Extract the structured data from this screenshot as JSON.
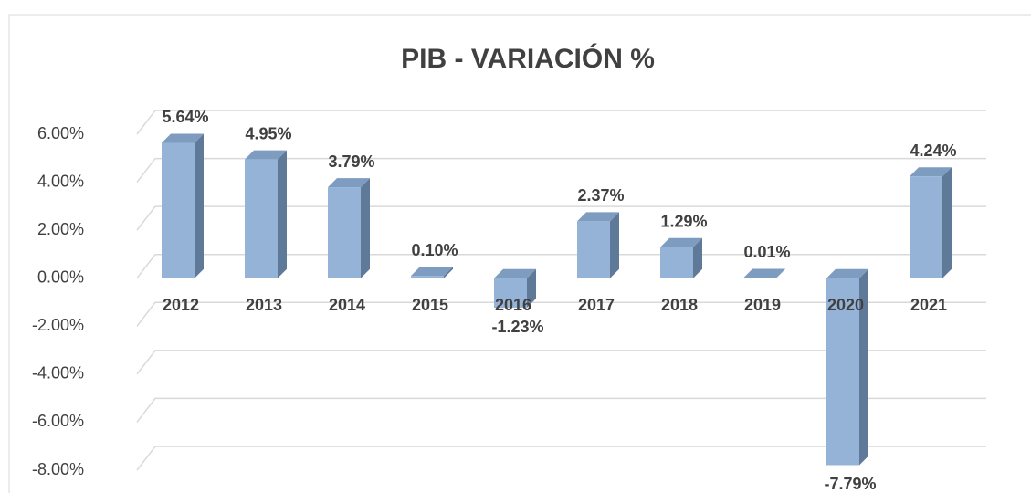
{
  "chart_data": {
    "type": "bar3d",
    "title": "PIB - VARIACIÓN %",
    "categories": [
      "2012",
      "2013",
      "2014",
      "2015",
      "2016",
      "2017",
      "2018",
      "2019",
      "2020",
      "2021"
    ],
    "values": [
      5.64,
      4.95,
      3.79,
      0.1,
      -1.23,
      2.37,
      1.29,
      0.01,
      -7.79,
      4.24
    ],
    "value_labels": [
      "5.64%",
      "4.95%",
      "3.79%",
      "0.10%",
      "-1.23%",
      "2.37%",
      "1.29%",
      "0.01%",
      "-7.79%",
      "4.24%"
    ],
    "color": "#95b3d7",
    "ylim": [
      -8,
      6
    ],
    "yticks": [
      {
        "value": 6,
        "label": "6.00%"
      },
      {
        "value": 4,
        "label": "4.00%"
      },
      {
        "value": 2,
        "label": "2.00%"
      },
      {
        "value": 0,
        "label": "0.00%"
      },
      {
        "value": -2,
        "label": "-2.00%"
      },
      {
        "value": -4,
        "label": "-4.00%"
      },
      {
        "value": -6,
        "label": "-6.00%"
      },
      {
        "value": -8,
        "label": "-8.00%"
      }
    ],
    "grid": true
  }
}
